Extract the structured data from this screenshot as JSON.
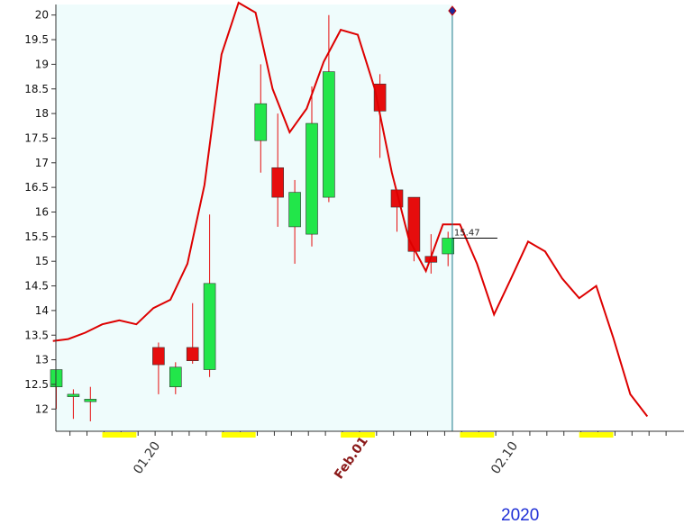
{
  "chart_data": {
    "type": "candlestick",
    "title": "",
    "xlabel": "",
    "ylabel": "",
    "ylim": [
      11.55,
      20.25
    ],
    "yticks": [
      12,
      12.5,
      13,
      13.5,
      14,
      14.5,
      15,
      15.5,
      16,
      16.5,
      17,
      17.5,
      18,
      18.5,
      19,
      19.5,
      20
    ],
    "x_tick_labels": [
      {
        "label": "01.20",
        "at": 5.5,
        "bold": false
      },
      {
        "label": "Feb.01",
        "at": 17.5,
        "bold": true
      },
      {
        "label": "02.10",
        "at": 26.5,
        "bold": false
      }
    ],
    "year_label": "2020",
    "last_value_label": "15.47",
    "last_value": 15.47,
    "series": [
      {
        "kind": "candles",
        "x": [
          0,
          1,
          2,
          6,
          7,
          8,
          9,
          12,
          13,
          14,
          15,
          16,
          19,
          20,
          21,
          22,
          23
        ],
        "open": [
          12.45,
          12.25,
          12.15,
          13.25,
          12.45,
          13.25,
          12.8,
          17.45,
          16.9,
          15.7,
          15.55,
          16.3,
          18.6,
          16.45,
          16.3,
          15.1,
          15.15
        ],
        "close": [
          12.8,
          12.3,
          12.2,
          12.9,
          12.85,
          12.98,
          14.55,
          18.2,
          16.3,
          16.4,
          17.8,
          18.85,
          18.05,
          16.1,
          15.2,
          14.98,
          15.47
        ],
        "high": [
          12.8,
          12.4,
          12.45,
          13.35,
          12.95,
          14.15,
          15.95,
          19.0,
          18.0,
          16.65,
          18.55,
          20.0,
          18.8,
          16.45,
          16.3,
          15.55,
          15.6
        ],
        "low": [
          12.0,
          11.8,
          11.75,
          12.3,
          12.3,
          12.92,
          12.65,
          16.8,
          15.7,
          14.95,
          15.3,
          16.2,
          17.1,
          15.6,
          15.0,
          14.75,
          14.9
        ]
      },
      {
        "kind": "line",
        "x": [
          -0.2,
          0.7,
          1.7,
          2.7,
          3.7,
          4.7,
          5.7,
          6.7,
          7.7,
          8.7,
          9.7,
          10.7,
          11.7,
          12.7,
          13.7,
          14.7,
          15.7,
          16.7,
          17.7,
          18.7,
          19.7,
          20.7,
          21.7,
          22.7,
          23.7,
          24.7,
          25.7,
          26.7,
          27.7,
          28.7,
          29.7,
          30.7,
          31.7,
          32.7,
          33.7,
          34.7
        ],
        "y": [
          13.38,
          13.42,
          13.55,
          13.72,
          13.8,
          13.72,
          14.05,
          14.22,
          14.95,
          16.55,
          19.2,
          20.25,
          20.05,
          18.5,
          17.62,
          18.1,
          19.05,
          19.7,
          19.6,
          18.5,
          16.8,
          15.45,
          14.8,
          15.75,
          15.75,
          14.95,
          13.92,
          14.65,
          15.4,
          15.2,
          14.65,
          14.25,
          14.5,
          13.45,
          12.3,
          11.85
        ]
      }
    ],
    "colors": {
      "up": "#22e64a",
      "down": "#e60d0d",
      "line": "#dd0000",
      "panel": "#effcfc",
      "cursor": "#1a7a8a",
      "weekend": "#ffff00"
    },
    "weekend_marks": [
      [
        2.7,
        4.7
      ],
      [
        9.7,
        11.7
      ],
      [
        16.7,
        18.7
      ],
      [
        23.7,
        25.7
      ],
      [
        30.7,
        32.7
      ]
    ],
    "cursor_x": 23.25
  }
}
